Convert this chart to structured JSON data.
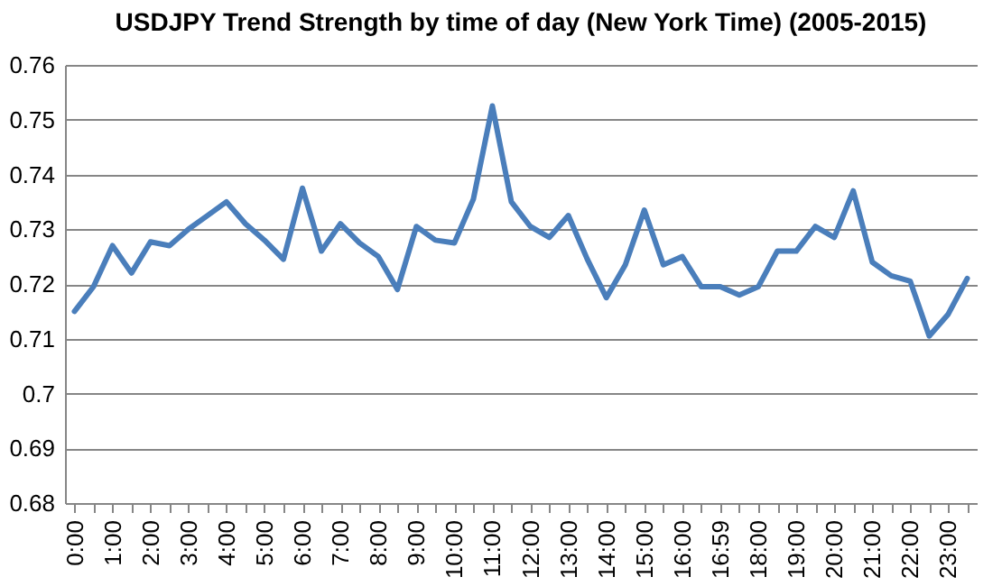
{
  "chart_data": {
    "type": "line",
    "title": "USDJPY Trend Strength by time of day (New York Time) (2005-2015)",
    "categories": [
      "0:00",
      null,
      "1:00",
      null,
      "2:00",
      null,
      "3:00",
      null,
      "4:00",
      null,
      "5:00",
      null,
      "6:00",
      null,
      "7:00",
      null,
      "8:00",
      null,
      "9:00",
      null,
      "10:00",
      null,
      "11:00",
      null,
      "12:00",
      null,
      "13:00",
      null,
      "14:00",
      null,
      "15:00",
      null,
      "16:00",
      null,
      "16:59",
      null,
      "18:00",
      null,
      "19:00",
      null,
      "20:00",
      null,
      "21:00",
      null,
      "22:00",
      null,
      "23:00",
      null
    ],
    "series": [
      {
        "color": "#4a7ebb",
        "values": [
          0.715,
          0.7195,
          0.727,
          0.722,
          0.7277,
          0.727,
          0.73,
          0.7325,
          0.735,
          0.731,
          0.728,
          0.7245,
          0.7375,
          0.726,
          0.731,
          0.7275,
          0.725,
          0.719,
          0.7305,
          0.728,
          0.7275,
          0.7355,
          0.7525,
          0.735,
          0.7305,
          0.7285,
          0.7325,
          0.7245,
          0.7175,
          0.7235,
          0.7335,
          0.7235,
          0.725,
          0.7195,
          0.7195,
          0.718,
          0.7195,
          0.726,
          0.726,
          0.7305,
          0.7285,
          0.737,
          0.724,
          0.7215,
          0.7205,
          0.7105,
          0.7145,
          0.721
        ]
      }
    ],
    "ylim": [
      0.68,
      0.76
    ],
    "yticks": [
      0.68,
      0.69,
      0.7,
      0.71,
      0.72,
      0.73,
      0.74,
      0.75,
      0.76
    ],
    "grid": "y",
    "marker": "none",
    "line_style": "solid"
  }
}
